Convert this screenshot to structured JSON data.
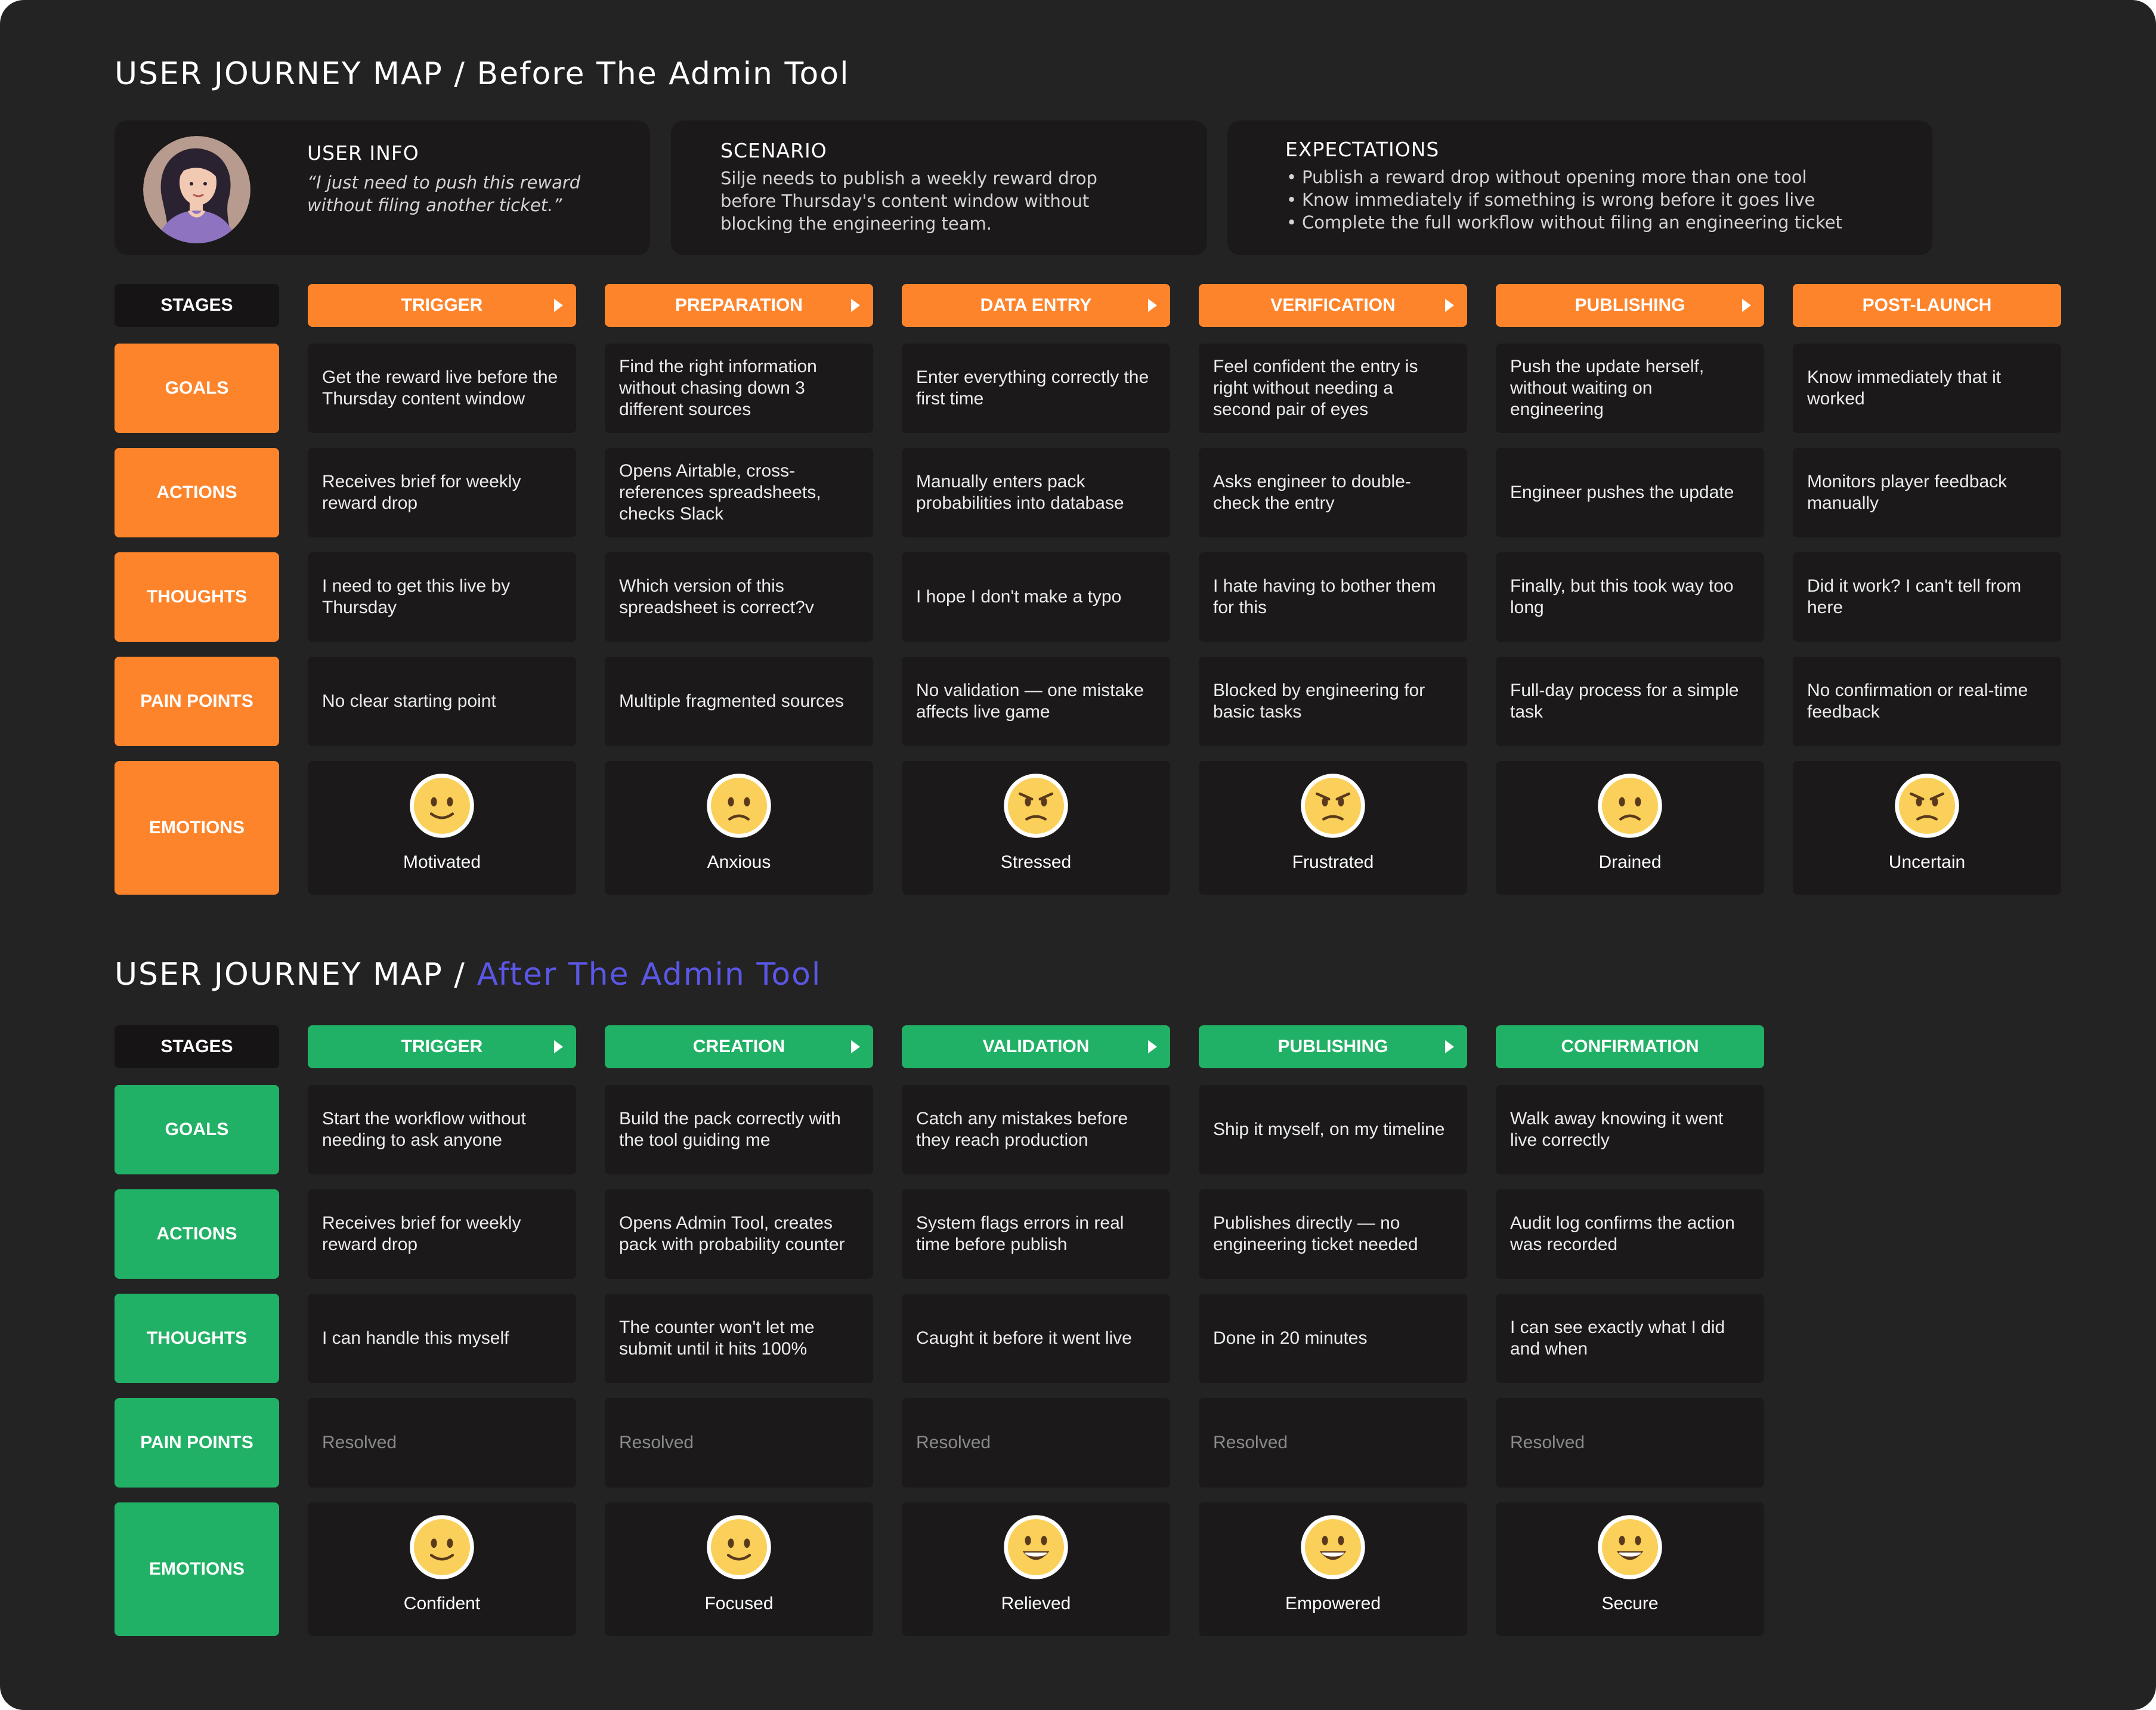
{
  "before": {
    "title_prefix": "USER JOURNEY MAP / ",
    "title_suffix": "Before The Admin Tool",
    "user_info": {
      "heading": "USER INFO",
      "quote_line1": "“I just need to push this reward",
      "quote_line2": "without filing another ticket.”"
    },
    "scenario": {
      "heading": "SCENARIO",
      "line1": "Silje needs to publish a weekly reward drop",
      "line2": "before Thursday's content window without",
      "line3": "blocking the engineering team."
    },
    "expectations": {
      "heading": "EXPECTATIONS",
      "items": [
        "Publish a reward drop without opening more than one tool",
        "Know immediately if something is wrong before it goes live",
        "Complete the full workflow without filing an engineering ticket"
      ]
    },
    "stages_label": "STAGES",
    "stages": [
      "TRIGGER",
      "PREPARATION",
      "DATA ENTRY",
      "VERIFICATION",
      "PUBLISHING",
      "POST-LAUNCH"
    ],
    "row_labels": {
      "goals": "GOALS",
      "actions": "ACTIONS",
      "thoughts": "THOUGHTS",
      "pain_points": "PAIN POINTS",
      "emotions": "EMOTIONS"
    },
    "goals": [
      "Get the reward live before the Thursday content window",
      "Find the right information without chasing down 3 different sources",
      "Enter everything correctly the first time",
      "Feel confident the entry is right without needing a second pair of eyes",
      "Push the update herself, without waiting on engineering",
      "Know immediately that it worked"
    ],
    "actions": [
      "Receives brief for weekly reward drop",
      "Opens Airtable, cross-references spreadsheets, checks Slack",
      "Manually enters pack probabilities into database",
      "Asks engineer to double-check the entry",
      "Engineer pushes the update",
      "Monitors player feedback manually"
    ],
    "thoughts": [
      "I need to get this live by Thursday",
      "Which version of this spreadsheet is correct?v",
      "I hope I don't make a typo",
      "I hate having to bother them for this",
      "Finally, but this took way too long",
      "Did it work? I can't tell from here"
    ],
    "pain_points": [
      "No clear starting point",
      "Multiple fragmented sources",
      "No validation — one mistake affects live game",
      "Blocked by engineering for basic tasks",
      "Full-day process for a simple task",
      "No confirmation or real-time feedback"
    ],
    "emotions": [
      {
        "label": "Motivated",
        "icon": "slight-smile-emoji"
      },
      {
        "label": "Anxious",
        "icon": "worried-face-emoji"
      },
      {
        "label": "Stressed",
        "icon": "angry-face-emoji"
      },
      {
        "label": "Frustrated",
        "icon": "angry-face-emoji"
      },
      {
        "label": "Drained",
        "icon": "worried-face-emoji"
      },
      {
        "label": "Uncertain",
        "icon": "angry-face-emoji"
      }
    ]
  },
  "after": {
    "title_prefix": "USER JOURNEY MAP / ",
    "title_suffix": "After The Admin Tool",
    "stages_label": "STAGES",
    "stages": [
      "TRIGGER",
      "CREATION",
      "VALIDATION",
      "PUBLISHING",
      "CONFIRMATION"
    ],
    "row_labels": {
      "goals": "GOALS",
      "actions": "ACTIONS",
      "thoughts": "THOUGHTS",
      "pain_points": "PAIN POINTS",
      "emotions": "EMOTIONS"
    },
    "goals": [
      "Start the workflow without needing to ask anyone",
      "Build the pack correctly with the tool guiding me",
      "Catch any mistakes before they reach production",
      "Ship it myself, on my timeline",
      "Walk away knowing it went live correctly"
    ],
    "actions": [
      "Receives brief for weekly reward drop",
      "Opens Admin Tool, creates pack with probability counter",
      "System flags errors in real time before publish",
      "Publishes directly — no engineering ticket needed",
      "Audit log confirms the action was recorded"
    ],
    "thoughts": [
      "I can handle this myself",
      "The counter won't let me submit until it hits 100%",
      "Caught it before it went live",
      "Done in 20 minutes",
      "I can see exactly what I did and when"
    ],
    "pain_points": [
      "Resolved",
      "Resolved",
      "Resolved",
      "Resolved",
      "Resolved"
    ],
    "emotions": [
      {
        "label": "Confident",
        "icon": "slight-smile-emoji"
      },
      {
        "label": "Focused",
        "icon": "slight-smile-emoji"
      },
      {
        "label": "Relieved",
        "icon": "grinning-face-emoji"
      },
      {
        "label": "Empowered",
        "icon": "grinning-face-emoji"
      },
      {
        "label": "Secure",
        "icon": "grinning-face-emoji"
      }
    ]
  },
  "colors": {
    "background": "#232323",
    "card": "#1b1919",
    "before_accent": "#fe842b",
    "after_accent": "#21b166",
    "title_accent": "#5b57e6",
    "emoji_yellow": "#fbd05a"
  }
}
